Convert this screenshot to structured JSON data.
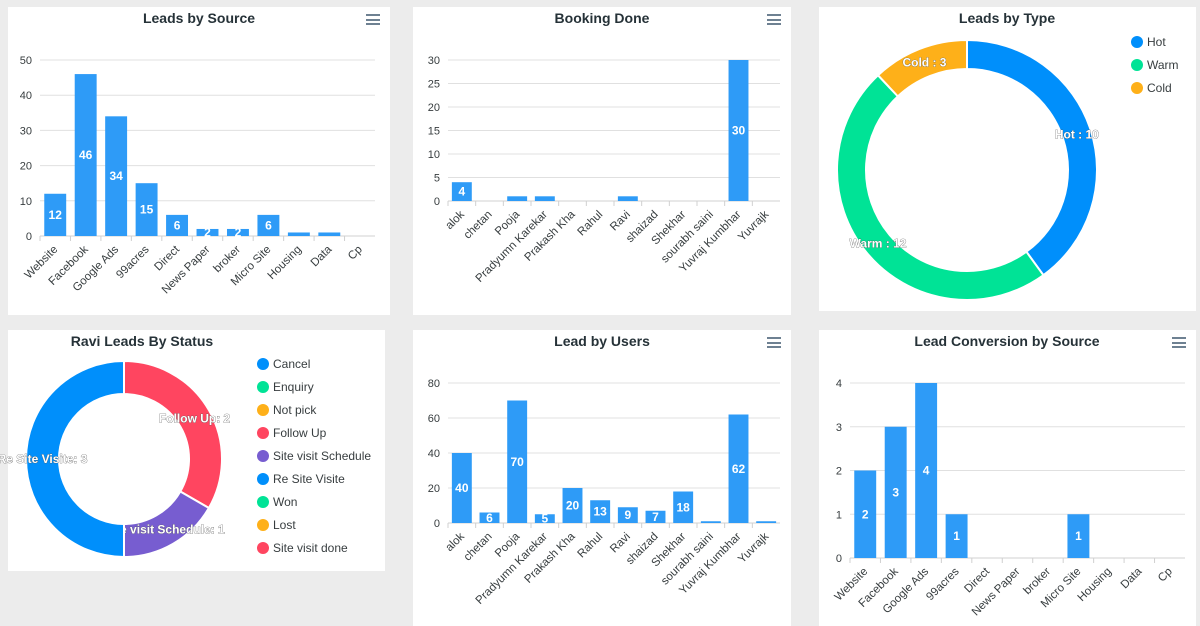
{
  "palette": [
    "#008FFB",
    "#00E396",
    "#FEB019",
    "#FF4560",
    "#775DD0"
  ],
  "bar_color": "#2E9BF7",
  "chart_data": [
    {
      "id": "leads-by-source",
      "type": "bar",
      "title": "Leads by Source",
      "categories": [
        "Website",
        "Facebook",
        "Google Ads",
        "99acres",
        "Direct",
        "News Paper",
        "broker",
        "Micro Site",
        "Housing",
        "Data",
        "Cp"
      ],
      "values": [
        12,
        46,
        34,
        15,
        6,
        2,
        2,
        6,
        1,
        1,
        0
      ],
      "ylim": [
        0,
        50
      ],
      "yticks": [
        0,
        10,
        20,
        30,
        40,
        50
      ],
      "grid": true,
      "menu_icon": "hamburger-menu-icon"
    },
    {
      "id": "booking-done",
      "type": "bar",
      "title": "Booking Done",
      "categories": [
        "alok",
        "chetan",
        "Pooja",
        "Pradyumn Karekar",
        "Prakash Kha",
        "Rahul",
        "Ravi",
        "shaizad",
        "Shekhar",
        "sourabh saini",
        "Yuvraj Kumbhar",
        "Yuvrajk"
      ],
      "values": [
        4,
        0,
        1,
        1,
        0,
        0,
        1,
        0,
        0,
        0,
        30,
        0
      ],
      "ylim": [
        0,
        30
      ],
      "yticks": [
        0,
        5,
        10,
        15,
        20,
        25,
        30
      ],
      "grid": true,
      "menu_icon": "hamburger-menu-icon"
    },
    {
      "id": "leads-by-type",
      "type": "pie",
      "donut": true,
      "title": "Leads by Type",
      "labels": [
        "Hot",
        "Warm",
        "Cold"
      ],
      "values": [
        10,
        12,
        3
      ],
      "label_separator": " : ",
      "legend": "top-right"
    },
    {
      "id": "ravi-leads-by-status",
      "type": "pie",
      "donut": true,
      "title": "Ravi Leads By Status",
      "labels": [
        "Cancel",
        "Enquiry",
        "Not pick",
        "Follow Up",
        "Site visit Schedule",
        "Re Site Visite",
        "Won",
        "Lost",
        "Site visit done"
      ],
      "values": [
        0,
        0,
        0,
        2,
        1,
        3,
        0,
        0,
        0
      ],
      "label_separator": ": ",
      "legend": "right"
    },
    {
      "id": "lead-by-users",
      "type": "bar",
      "title": "Lead by Users",
      "categories": [
        "alok",
        "chetan",
        "Pooja",
        "Pradyumn Karekar",
        "Prakash Kha",
        "Rahul",
        "Ravi",
        "shaizad",
        "Shekhar",
        "sourabh saini",
        "Yuvraj Kumbhar",
        "Yuvrajk"
      ],
      "values": [
        40,
        6,
        70,
        5,
        20,
        13,
        9,
        7,
        18,
        1,
        62,
        1
      ],
      "ylim": [
        0,
        80
      ],
      "yticks": [
        0,
        20,
        40,
        60,
        80
      ],
      "grid": true,
      "menu_icon": "hamburger-menu-icon"
    },
    {
      "id": "lead-conversion-by-source",
      "type": "bar",
      "title": "Lead Conversion by Source",
      "categories": [
        "Website",
        "Facebook",
        "Google Ads",
        "99acres",
        "Direct",
        "News Paper",
        "broker",
        "Micro Site",
        "Housing",
        "Data",
        "Cp"
      ],
      "values": [
        2,
        3,
        4,
        1,
        0,
        0,
        0,
        1,
        0,
        0,
        0
      ],
      "ylim": [
        0,
        4
      ],
      "yticks": [
        0,
        1,
        2,
        3,
        4
      ],
      "grid": true,
      "menu_icon": "hamburger-menu-icon"
    }
  ]
}
